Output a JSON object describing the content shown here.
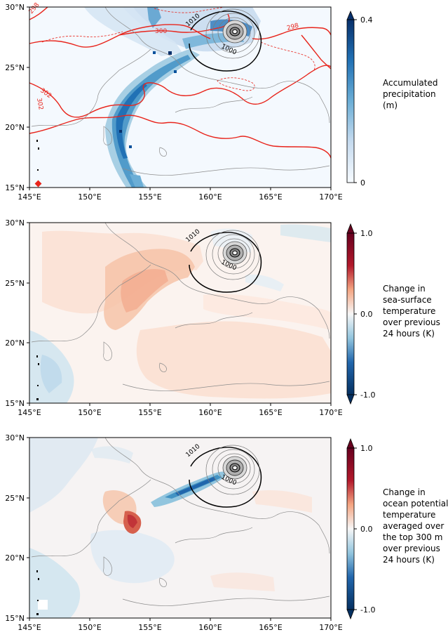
{
  "figure": {
    "panels": [
      {
        "id": "precip",
        "field": "accumulated-precipitation",
        "colormap": "Blues",
        "colorbar": {
          "max_label": "0.4",
          "min_label": "0",
          "extend_top": true,
          "extend_bottom": false,
          "label_lines": [
            "Accumulated",
            "precipitation",
            "(m)"
          ]
        },
        "extra_contours": {
          "color": "#e8251c",
          "labels": [
            "298",
            "300",
            "298",
            "302",
            "302"
          ]
        }
      },
      {
        "id": "sst",
        "field": "change-in-sea-surface-temperature",
        "colormap": "RdBu_r",
        "colorbar": {
          "max_label": "1.0",
          "mid_label": "0.0",
          "min_label": "-1.0",
          "extend_top": true,
          "extend_bottom": true,
          "label_lines": [
            "Change in",
            "sea-surface",
            "temperature",
            "over previous",
            "24 hours (K)"
          ]
        }
      },
      {
        "id": "opt",
        "field": "change-in-ocean-potential-temperature",
        "colormap": "RdBu_r",
        "colorbar": {
          "max_label": "1.0",
          "mid_label": "0.0",
          "min_label": "-1.0",
          "extend_top": true,
          "extend_bottom": true,
          "label_lines": [
            "Change in",
            "ocean potential",
            "temperature",
            "averaged over",
            "the top 300 m",
            "over previous",
            "24 hours (K)"
          ]
        }
      }
    ],
    "map": {
      "lon_ticks": [
        "145°E",
        "150°E",
        "155°E",
        "160°E",
        "165°E",
        "170°E"
      ],
      "lat_ticks": [
        "30°N",
        "25°N",
        "20°N",
        "15°N"
      ],
      "lon_range": [
        145,
        170
      ],
      "lat_range": [
        15,
        30
      ],
      "pressure_contour_labels": [
        "1010",
        "1000"
      ],
      "cyclone_center": {
        "lon": 162,
        "lat": 27.4
      }
    }
  }
}
